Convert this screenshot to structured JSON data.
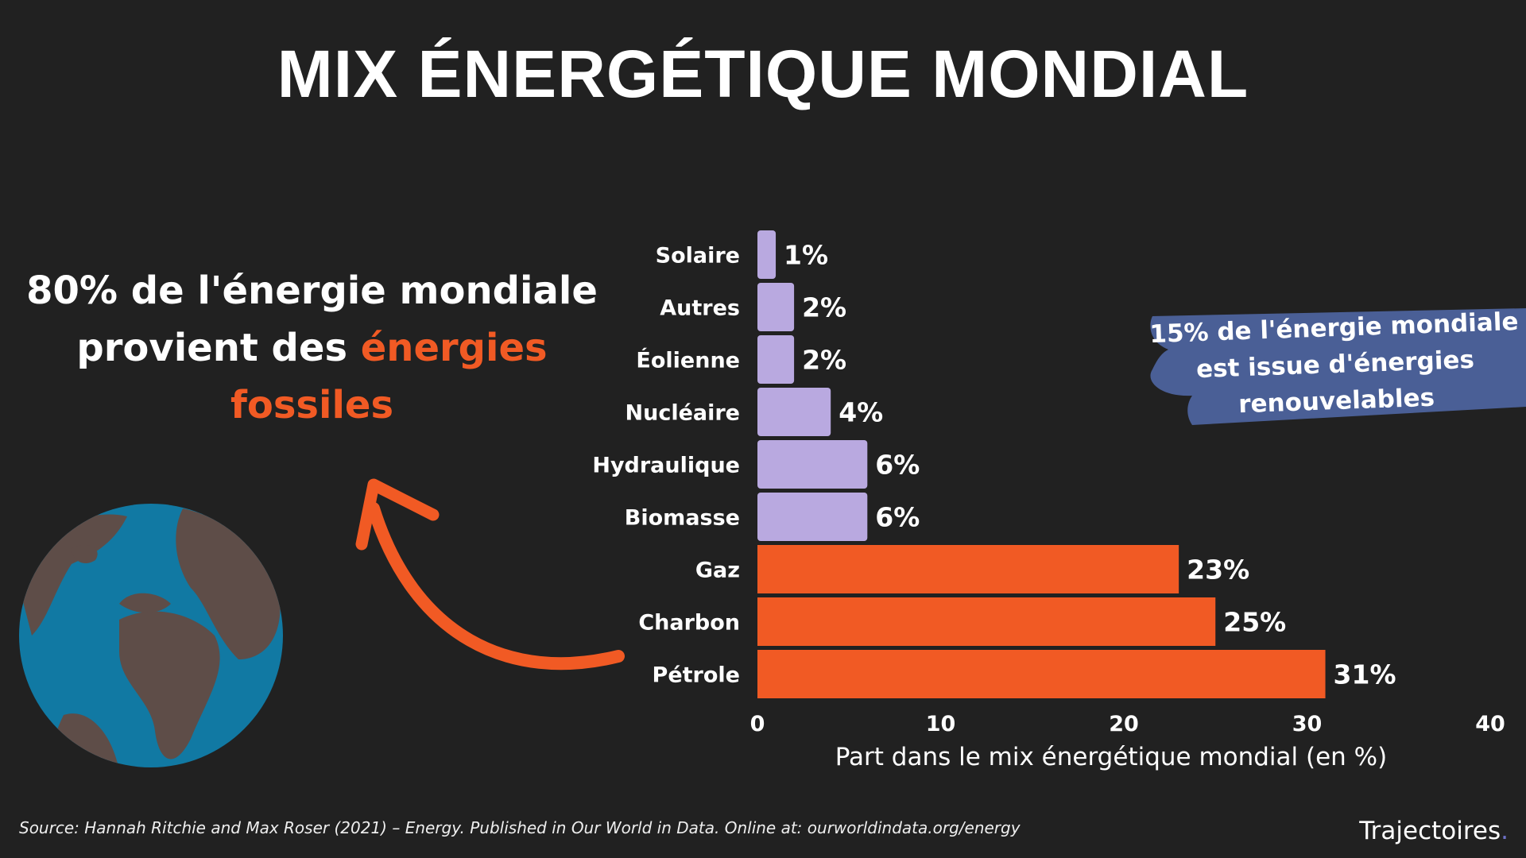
{
  "title": "MIX ÉNERGÉTIQUE MONDIAL",
  "left_text": {
    "part1": "80% de l'énergie mondiale provient des ",
    "highlight": "énergies fossiles"
  },
  "callout": {
    "line1": "15% de l'énergie mondiale",
    "line2": "est issue d'énergies",
    "line3": "renouvelables",
    "color": "#4a5f96"
  },
  "source": "Source: Hannah Ritchie and Max Roser (2021) – Energy. Published in Our World in Data. Online at: ourworldindata.org/energy",
  "logo": {
    "text": "Trajectoires",
    "dot": "."
  },
  "colors": {
    "background": "#212121",
    "renewable": "#b9a9e0",
    "fossil": "#f15a24",
    "globe_ocean": "#1179a3",
    "globe_land": "#5e4d48"
  },
  "icons": [
    "globe-icon",
    "curved-arrow-icon"
  ],
  "chart_data": {
    "type": "bar",
    "orientation": "horizontal",
    "categories": [
      "Solaire",
      "Autres",
      "Éolienne",
      "Nucléaire",
      "Hydraulique",
      "Biomasse",
      "Gaz",
      "Charbon",
      "Pétrole"
    ],
    "values": [
      1,
      2,
      2,
      4,
      6,
      6,
      23,
      25,
      31
    ],
    "data_labels": [
      "1%",
      "2%",
      "2%",
      "4%",
      "6%",
      "6%",
      "23%",
      "25%",
      "31%"
    ],
    "group": [
      "renewable",
      "renewable",
      "renewable",
      "renewable",
      "renewable",
      "renewable",
      "fossil",
      "fossil",
      "fossil"
    ],
    "xlabel": "Part dans le mix énergétique mondial (en %)",
    "xlim": [
      0,
      40
    ],
    "xticks": [
      0,
      10,
      20,
      30,
      40
    ],
    "grid": false
  }
}
